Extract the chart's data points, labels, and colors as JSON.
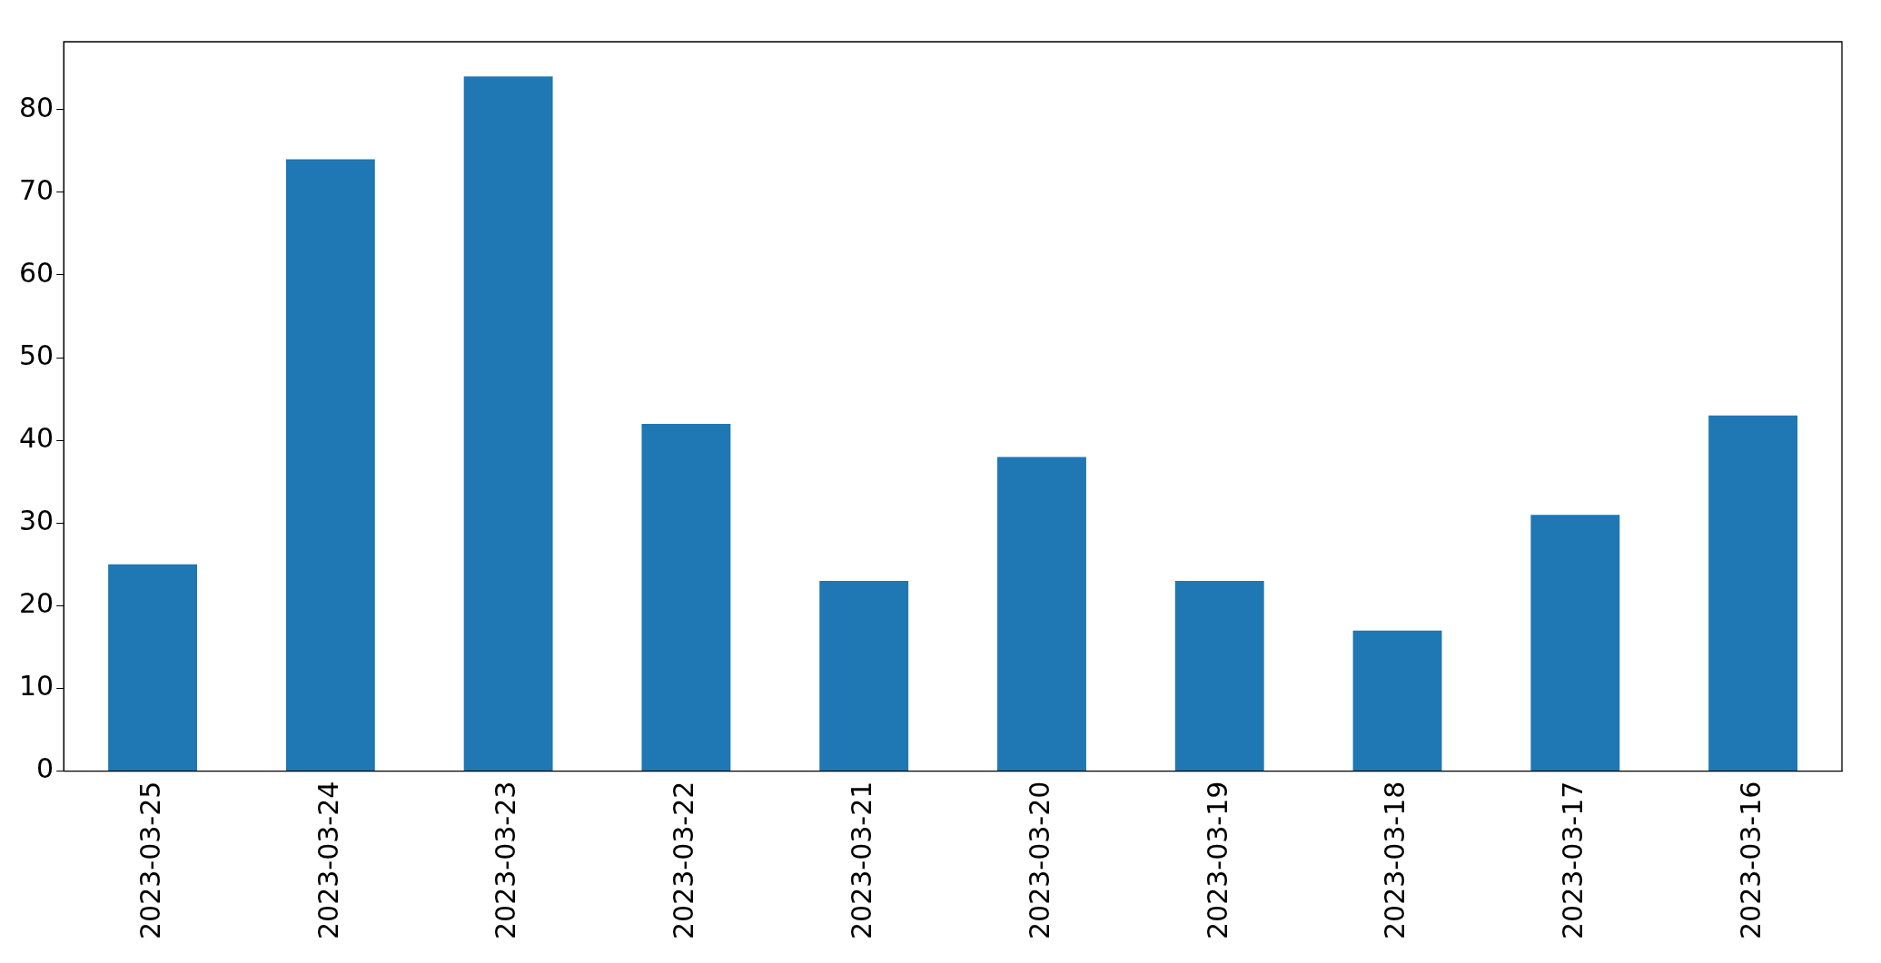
{
  "chart_data": {
    "type": "bar",
    "categories": [
      "2023-03-25",
      "2023-03-24",
      "2023-03-23",
      "2023-03-22",
      "2023-03-21",
      "2023-03-20",
      "2023-03-19",
      "2023-03-18",
      "2023-03-17",
      "2023-03-16"
    ],
    "values": [
      25,
      74,
      84,
      42,
      23,
      38,
      23,
      17,
      31,
      43
    ],
    "color": "#1f77b4",
    "ylim": [
      0,
      88.2
    ],
    "yticks": [
      0,
      10,
      20,
      30,
      40,
      50,
      60,
      70,
      80
    ],
    "grid": false
  }
}
